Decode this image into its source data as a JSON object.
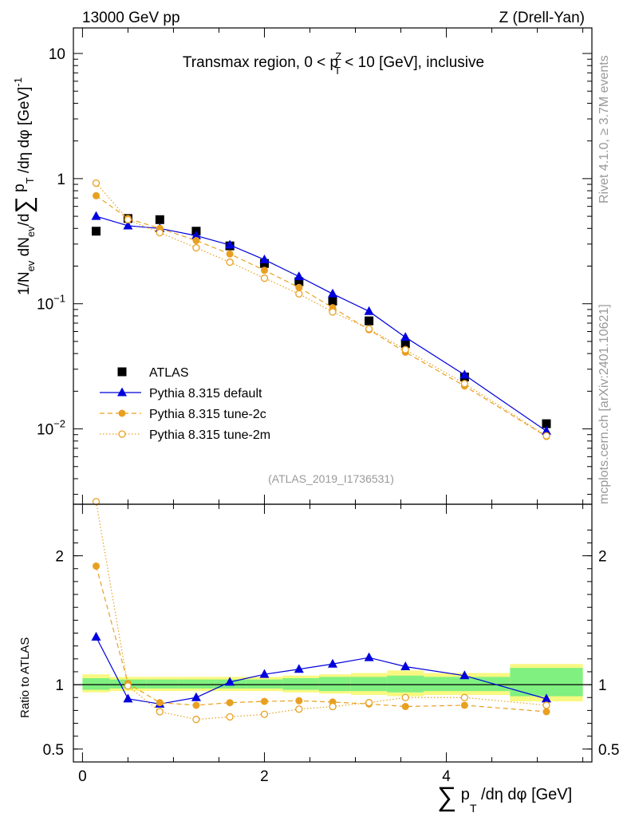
{
  "header": {
    "left": "13000 GeV pp",
    "right": "Z (Drell-Yan)"
  },
  "side": {
    "rivet": "Rivet 4.1.0, ≥ 3.7M events",
    "mcplots": "mcplots.cern.ch [arXiv:2401.10621]"
  },
  "colors": {
    "atlas": "#000000",
    "default": "#0000dd",
    "tune2c": "#e8a020",
    "tune2m": "#e8a020",
    "band_inner": "#80f080",
    "band_outer": "#f8f880"
  },
  "chart_data": [
    {
      "type": "scatter",
      "panel": "main",
      "title": "Transmax region, 0 < p_T^Z < 10 [GeV], inclusive",
      "title_parts": {
        "a": "Transmax region, 0 < p",
        "sup": "Z",
        "sub": "T",
        "b": " < 10 [GeV], inclusive"
      },
      "ylabel": "1/N_ev dN_ev/d∑ p_T /dη dφ  [GeV]^-1",
      "ylabel_parts": {
        "a": "1/N",
        "b": "ev",
        "c": " dN",
        "d": "ev",
        "e": "/d",
        "sum": "∑",
        "f": " p",
        "g": "T",
        "h": " /dη dφ  [GeV]",
        "sup": "-1"
      },
      "yscale": "log",
      "ylim": [
        0.0025,
        16
      ],
      "xlim": [
        -0.1,
        5.6
      ],
      "y_ticks": [
        {
          "v": 10,
          "label": "10"
        },
        {
          "v": 1,
          "label": "1"
        },
        {
          "v": 0.1,
          "base": "10",
          "exp": "−1"
        },
        {
          "v": 0.01,
          "base": "10",
          "exp": "−2"
        }
      ],
      "legend_position": "lower-left",
      "watermark": "(ATLAS_2019_I1736531)",
      "series": [
        {
          "name": "ATLAS",
          "style": "square",
          "x": [
            0.15,
            0.5,
            0.85,
            1.25,
            1.62,
            2.0,
            2.38,
            2.75,
            3.15,
            3.55,
            4.2,
            5.1
          ],
          "y": [
            0.38,
            0.48,
            0.47,
            0.38,
            0.29,
            0.21,
            0.15,
            0.105,
            0.073,
            0.048,
            0.026,
            0.011
          ]
        },
        {
          "name": "Pythia 8.315 default",
          "style": "triangle-solid",
          "x": [
            0.15,
            0.5,
            0.85,
            1.25,
            1.62,
            2.0,
            2.38,
            2.75,
            3.15,
            3.55,
            4.2,
            5.1
          ],
          "y": [
            0.5,
            0.42,
            0.4,
            0.35,
            0.295,
            0.225,
            0.165,
            0.12,
            0.087,
            0.054,
            0.027,
            0.0096
          ]
        },
        {
          "name": "Pythia 8.315 tune-2c",
          "style": "circle-dashed",
          "x": [
            0.15,
            0.5,
            0.85,
            1.25,
            1.62,
            2.0,
            2.38,
            2.75,
            3.15,
            3.55,
            4.2,
            5.1
          ],
          "y": [
            0.73,
            0.48,
            0.4,
            0.32,
            0.25,
            0.185,
            0.135,
            0.093,
            0.062,
            0.041,
            0.022,
            0.0087
          ]
        },
        {
          "name": "Pythia 8.315 tune-2m",
          "style": "open-circle-dotted",
          "x": [
            0.15,
            0.5,
            0.85,
            1.25,
            1.62,
            2.0,
            2.38,
            2.75,
            3.15,
            3.55,
            4.2,
            5.1
          ],
          "y": [
            0.92,
            0.47,
            0.37,
            0.28,
            0.215,
            0.16,
            0.12,
            0.086,
            0.063,
            0.043,
            0.023,
            0.0088
          ]
        }
      ]
    },
    {
      "type": "line",
      "panel": "ratio",
      "ylabel": "Ratio to ATLAS",
      "xlabel": "∑ p_T /dη dφ [GeV]",
      "xlabel_parts": {
        "sum": "∑",
        "a": " p",
        "sub": "T",
        "b": " /dη dφ [GeV]"
      },
      "ylim": [
        0.4,
        2.4
      ],
      "xlim": [
        -0.1,
        5.6
      ],
      "y_ticks": [
        {
          "v": 2,
          "label": "2"
        },
        {
          "v": 1,
          "label": "1"
        },
        {
          "v": 0.5,
          "label": "0.5"
        }
      ],
      "x_ticks": [
        {
          "v": 0,
          "label": "0"
        },
        {
          "v": 2,
          "label": "2"
        },
        {
          "v": 4,
          "label": "4"
        }
      ],
      "reference": 1,
      "bands": [
        {
          "x0": 0.0,
          "x1": 0.3,
          "inner": [
            0.96,
            1.05
          ],
          "outer": [
            0.94,
            1.08
          ]
        },
        {
          "x0": 0.3,
          "x1": 0.7,
          "inner": [
            0.97,
            1.04
          ],
          "outer": [
            0.95,
            1.06
          ]
        },
        {
          "x0": 0.7,
          "x1": 1.05,
          "inner": [
            0.97,
            1.04
          ],
          "outer": [
            0.95,
            1.06
          ]
        },
        {
          "x0": 1.05,
          "x1": 1.45,
          "inner": [
            0.97,
            1.04
          ],
          "outer": [
            0.95,
            1.06
          ]
        },
        {
          "x0": 1.45,
          "x1": 1.8,
          "inner": [
            0.97,
            1.04
          ],
          "outer": [
            0.95,
            1.06
          ]
        },
        {
          "x0": 1.8,
          "x1": 2.2,
          "inner": [
            0.97,
            1.04
          ],
          "outer": [
            0.95,
            1.06
          ]
        },
        {
          "x0": 2.2,
          "x1": 2.6,
          "inner": [
            0.96,
            1.05
          ],
          "outer": [
            0.94,
            1.07
          ]
        },
        {
          "x0": 2.6,
          "x1": 2.95,
          "inner": [
            0.95,
            1.06
          ],
          "outer": [
            0.93,
            1.08
          ]
        },
        {
          "x0": 2.95,
          "x1": 3.35,
          "inner": [
            0.95,
            1.06
          ],
          "outer": [
            0.92,
            1.09
          ]
        },
        {
          "x0": 3.35,
          "x1": 3.75,
          "inner": [
            0.94,
            1.07
          ],
          "outer": [
            0.91,
            1.11
          ]
        },
        {
          "x0": 3.75,
          "x1": 4.7,
          "inner": [
            0.95,
            1.06
          ],
          "outer": [
            0.92,
            1.09
          ]
        },
        {
          "x0": 4.7,
          "x1": 5.5,
          "inner": [
            0.91,
            1.13
          ],
          "outer": [
            0.87,
            1.16
          ]
        }
      ],
      "series": [
        {
          "name": "Pythia 8.315 default",
          "style": "triangle-solid",
          "x": [
            0.15,
            0.5,
            0.85,
            1.25,
            1.62,
            2.0,
            2.38,
            2.75,
            3.15,
            3.55,
            4.2,
            5.1
          ],
          "y": [
            1.37,
            0.89,
            0.85,
            0.9,
            1.02,
            1.08,
            1.12,
            1.16,
            1.21,
            1.14,
            1.07,
            0.89
          ]
        },
        {
          "name": "Pythia 8.315 tune-2c",
          "style": "circle-dashed",
          "x": [
            0.15,
            0.5,
            0.85,
            1.25,
            1.62,
            2.0,
            2.38,
            2.75,
            3.15,
            3.55,
            4.2,
            5.1
          ],
          "y": [
            1.92,
            1.01,
            0.86,
            0.84,
            0.86,
            0.87,
            0.875,
            0.865,
            0.85,
            0.83,
            0.84,
            0.79
          ]
        },
        {
          "name": "Pythia 8.315 tune-2m",
          "style": "open-circle-dotted",
          "x": [
            0.15,
            0.5,
            0.85,
            1.25,
            1.62,
            2.0,
            2.38,
            2.75,
            3.15,
            3.55,
            4.2,
            5.1
          ],
          "y": [
            2.42,
            0.99,
            0.79,
            0.73,
            0.75,
            0.77,
            0.81,
            0.83,
            0.86,
            0.9,
            0.9,
            0.84
          ]
        }
      ]
    }
  ]
}
